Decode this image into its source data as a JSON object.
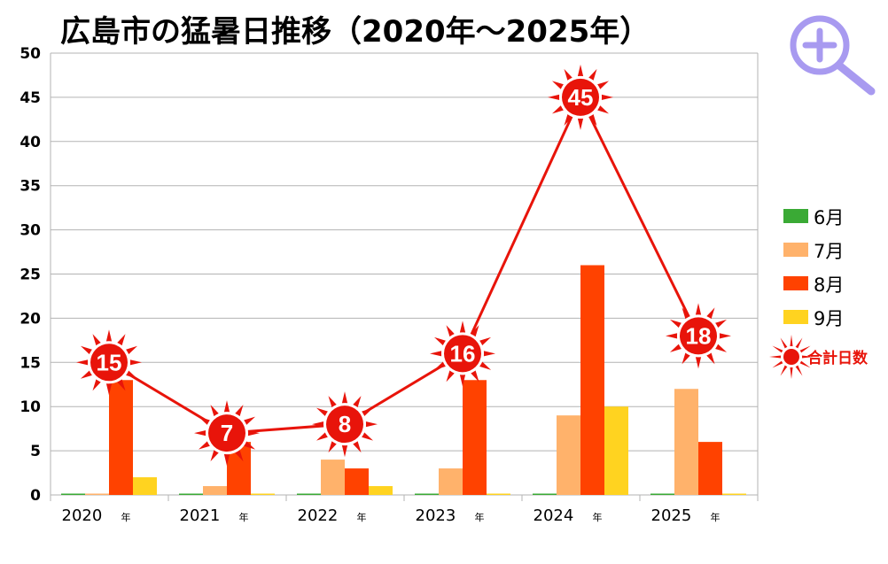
{
  "chart_data": {
    "type": "bar",
    "title": "広島市の猛暑日推移（2020年～2025年）",
    "categories": [
      "2020",
      "2021",
      "2022",
      "2023",
      "2024",
      "2025"
    ],
    "category_unit": "年",
    "ylim": [
      0,
      50
    ],
    "yticks": [
      0,
      5,
      10,
      15,
      20,
      25,
      30,
      35,
      40,
      45,
      50
    ],
    "grid": true,
    "legend_position": "right",
    "series": [
      {
        "name": "6月",
        "color": "#3aaa35",
        "values": [
          0,
          0,
          0,
          0,
          0,
          0
        ]
      },
      {
        "name": "7月",
        "color": "#ffb26b",
        "values": [
          0,
          1,
          4,
          3,
          9,
          12
        ]
      },
      {
        "name": "8月",
        "color": "#ff4200",
        "values": [
          13,
          6,
          3,
          13,
          26,
          6
        ]
      },
      {
        "name": "9月",
        "color": "#ffd320",
        "values": [
          2,
          0,
          1,
          0,
          10,
          0
        ]
      }
    ],
    "total_series": {
      "name": "合計日数",
      "color": "#e8140a",
      "values": [
        15,
        7,
        8,
        16,
        45,
        18
      ]
    }
  },
  "colors": {
    "grid": "#b3b3b3",
    "axis": "#b3b3b3",
    "zoom_icon": "#a89af0"
  },
  "icons": {
    "zoom": "zoom-in-icon"
  }
}
